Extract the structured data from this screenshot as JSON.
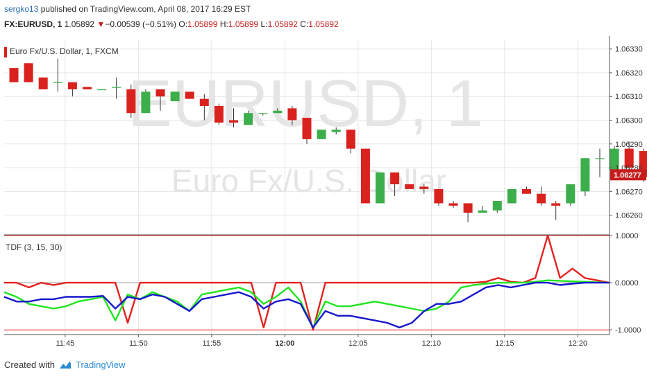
{
  "header": {
    "user": "sergko13",
    "published_text": "published on TradingView.com, April 08, 2017 16:29 EST",
    "symbol": "FX:EURUSD, 1",
    "last": "1.05892",
    "change": "−0.00539 (−0.51%)",
    "o_label": "O:",
    "o_value": "1.05899",
    "h_label": "H:",
    "h_value": "1.05899",
    "l_label": "L:",
    "l_value": "1.05892",
    "c_label": "C:",
    "c_value": "1.05892"
  },
  "footer": {
    "created_with": "Created with",
    "brand": "TradingView"
  },
  "colors": {
    "up": "#3cae4b",
    "down": "#d9221e",
    "tdf_red": "#e3211e",
    "tdf_green": "#1fe51f",
    "tdf_blue": "#1616cc",
    "grid": "#e6e6e6"
  },
  "chart_data": [
    {
      "type": "candlestick",
      "title": "Euro Fx/U.S. Dollar, 1, FXCM",
      "watermark_main": "EURUSD, 1",
      "watermark_sub": "Euro Fx/U.S. Dollar",
      "ylim": [
        1.06252,
        1.06334
      ],
      "y_ticks": [
        "1.06330",
        "1.06320",
        "1.06310",
        "1.06300",
        "1.06290",
        "1.06280",
        "1.06270",
        "1.06260"
      ],
      "x_ticks": [
        {
          "label": "11:45",
          "index": 3.5
        },
        {
          "label": "11:50",
          "index": 8.5
        },
        {
          "label": "11:55",
          "index": 13.5
        },
        {
          "label": "12:00",
          "index": 18.5
        },
        {
          "label": "12:05",
          "index": 23.5
        },
        {
          "label": "12:10",
          "index": 28.5
        },
        {
          "label": "12:15",
          "index": 33.5
        },
        {
          "label": "12:20",
          "index": 38.5
        }
      ],
      "last_price_label": "1.06277",
      "last_price_value": 1.06277,
      "candles": [
        {
          "o": 1.06322,
          "h": 1.06322,
          "l": 1.06316,
          "c": 1.06316
        },
        {
          "o": 1.06324,
          "h": 1.06324,
          "l": 1.06316,
          "c": 1.06316
        },
        {
          "o": 1.06318,
          "h": 1.06318,
          "l": 1.06313,
          "c": 1.06313
        },
        {
          "o": 1.06316,
          "h": 1.06326,
          "l": 1.06312,
          "c": 1.06316
        },
        {
          "o": 1.06316,
          "h": 1.06316,
          "l": 1.0631,
          "c": 1.06313
        },
        {
          "o": 1.06314,
          "h": 1.06314,
          "l": 1.06313,
          "c": 1.06313
        },
        {
          "o": 1.06313,
          "h": 1.06313,
          "l": 1.06313,
          "c": 1.06313
        },
        {
          "o": 1.06314,
          "h": 1.06318,
          "l": 1.06309,
          "c": 1.06314
        },
        {
          "o": 1.06313,
          "h": 1.06315,
          "l": 1.06301,
          "c": 1.06303
        },
        {
          "o": 1.06303,
          "h": 1.06313,
          "l": 1.06303,
          "c": 1.06312
        },
        {
          "o": 1.06313,
          "h": 1.06313,
          "l": 1.06304,
          "c": 1.0631
        },
        {
          "o": 1.06308,
          "h": 1.06312,
          "l": 1.06308,
          "c": 1.06312
        },
        {
          "o": 1.06312,
          "h": 1.06312,
          "l": 1.06309,
          "c": 1.06309
        },
        {
          "o": 1.06309,
          "h": 1.06311,
          "l": 1.063,
          "c": 1.06306
        },
        {
          "o": 1.06306,
          "h": 1.06307,
          "l": 1.06298,
          "c": 1.06299
        },
        {
          "o": 1.063,
          "h": 1.06305,
          "l": 1.06297,
          "c": 1.06299
        },
        {
          "o": 1.06298,
          "h": 1.06304,
          "l": 1.06298,
          "c": 1.06303
        },
        {
          "o": 1.06303,
          "h": 1.06303,
          "l": 1.06302,
          "c": 1.06303
        },
        {
          "o": 1.06303,
          "h": 1.06305,
          "l": 1.06303,
          "c": 1.06304
        },
        {
          "o": 1.06305,
          "h": 1.06306,
          "l": 1.06298,
          "c": 1.063
        },
        {
          "o": 1.06301,
          "h": 1.06301,
          "l": 1.0629,
          "c": 1.06292
        },
        {
          "o": 1.06292,
          "h": 1.06296,
          "l": 1.06292,
          "c": 1.06296
        },
        {
          "o": 1.06295,
          "h": 1.06297,
          "l": 1.06294,
          "c": 1.06296
        },
        {
          "o": 1.06296,
          "h": 1.06296,
          "l": 1.06286,
          "c": 1.06288
        },
        {
          "o": 1.06288,
          "h": 1.06288,
          "l": 1.06265,
          "c": 1.06265
        },
        {
          "o": 1.06265,
          "h": 1.06278,
          "l": 1.06265,
          "c": 1.06278
        },
        {
          "o": 1.06278,
          "h": 1.06278,
          "l": 1.06268,
          "c": 1.06273
        },
        {
          "o": 1.06273,
          "h": 1.06273,
          "l": 1.06271,
          "c": 1.06271
        },
        {
          "o": 1.06272,
          "h": 1.06273,
          "l": 1.06269,
          "c": 1.06271
        },
        {
          "o": 1.06271,
          "h": 1.06271,
          "l": 1.06264,
          "c": 1.06265
        },
        {
          "o": 1.06265,
          "h": 1.06266,
          "l": 1.06263,
          "c": 1.06264
        },
        {
          "o": 1.06265,
          "h": 1.06265,
          "l": 1.06257,
          "c": 1.06261
        },
        {
          "o": 1.06261,
          "h": 1.06264,
          "l": 1.06261,
          "c": 1.06262
        },
        {
          "o": 1.06262,
          "h": 1.06266,
          "l": 1.06261,
          "c": 1.06266
        },
        {
          "o": 1.06265,
          "h": 1.06271,
          "l": 1.06265,
          "c": 1.06271
        },
        {
          "o": 1.06271,
          "h": 1.06272,
          "l": 1.06269,
          "c": 1.06269
        },
        {
          "o": 1.06269,
          "h": 1.06272,
          "l": 1.06264,
          "c": 1.06265
        },
        {
          "o": 1.06265,
          "h": 1.06266,
          "l": 1.06258,
          "c": 1.06264
        },
        {
          "o": 1.06265,
          "h": 1.06273,
          "l": 1.06264,
          "c": 1.06273
        },
        {
          "o": 1.0627,
          "h": 1.06284,
          "l": 1.06268,
          "c": 1.06284
        },
        {
          "o": 1.06284,
          "h": 1.06288,
          "l": 1.06276,
          "c": 1.06284
        },
        {
          "o": 1.06279,
          "h": 1.06289,
          "l": 1.06278,
          "c": 1.06288
        },
        {
          "o": 1.06288,
          "h": 1.06291,
          "l": 1.06278,
          "c": 1.0628
        },
        {
          "o": 1.06287,
          "h": 1.06288,
          "l": 1.06274,
          "c": 1.06276
        },
        {
          "o": 1.06276,
          "h": 1.06289,
          "l": 1.06274,
          "c": 1.06287
        },
        {
          "o": 1.06286,
          "h": 1.06288,
          "l": 1.06274,
          "c": 1.06277
        }
      ]
    },
    {
      "type": "line",
      "title": "TDF (3, 15, 30)",
      "ylim": [
        -1.1,
        1.0
      ],
      "y_ticks": [
        "1.0000",
        "0.0000",
        "-1.0000"
      ],
      "series": [
        {
          "color": "red",
          "values": [
            0.0,
            0.0,
            -0.1,
            0.0,
            -0.05,
            0.0,
            0.0,
            0.0,
            0.0,
            0.0,
            -0.85,
            0.0,
            0.0,
            0.0,
            0.0,
            0.0,
            0.0,
            0.0,
            0.0,
            0.0,
            0.0,
            -0.95,
            0.0,
            0.0,
            0.0,
            -1.0,
            0.0,
            0.0,
            0.0,
            0.0,
            0.0,
            0.0,
            0.0,
            0.0,
            0.0,
            0.0,
            0.0,
            0.0,
            0.0,
            0.02,
            0.1,
            0.02,
            0.0,
            0.1,
            1.0,
            0.1,
            0.3,
            0.1,
            0.05,
            0.0
          ]
        },
        {
          "color": "green",
          "values": [
            -0.2,
            -0.3,
            -0.45,
            -0.5,
            -0.55,
            -0.5,
            -0.4,
            -0.35,
            -0.3,
            -0.8,
            -0.25,
            -0.35,
            -0.2,
            -0.3,
            -0.4,
            -0.6,
            -0.25,
            -0.2,
            -0.15,
            -0.1,
            -0.2,
            -0.45,
            -0.3,
            -0.1,
            -0.4,
            -0.95,
            -0.4,
            -0.5,
            -0.5,
            -0.45,
            -0.4,
            -0.45,
            -0.5,
            -0.55,
            -0.6,
            -0.55,
            -0.4,
            -0.1,
            -0.05,
            -0.02,
            0.0,
            0.0,
            0.0,
            0.02,
            0.05,
            0.04,
            0.03,
            0.02,
            0.01,
            0.0
          ]
        },
        {
          "color": "blue",
          "values": [
            -0.3,
            -0.4,
            -0.4,
            -0.35,
            -0.35,
            -0.3,
            -0.3,
            -0.3,
            -0.28,
            -0.55,
            -0.3,
            -0.35,
            -0.25,
            -0.3,
            -0.45,
            -0.6,
            -0.35,
            -0.3,
            -0.25,
            -0.2,
            -0.3,
            -0.55,
            -0.4,
            -0.35,
            -0.45,
            -0.95,
            -0.6,
            -0.7,
            -0.7,
            -0.75,
            -0.8,
            -0.85,
            -0.95,
            -0.85,
            -0.6,
            -0.45,
            -0.45,
            -0.4,
            -0.25,
            -0.1,
            -0.05,
            -0.1,
            -0.05,
            0.0,
            0.0,
            -0.05,
            -0.02,
            0.0,
            0.0,
            0.0
          ]
        }
      ]
    }
  ]
}
